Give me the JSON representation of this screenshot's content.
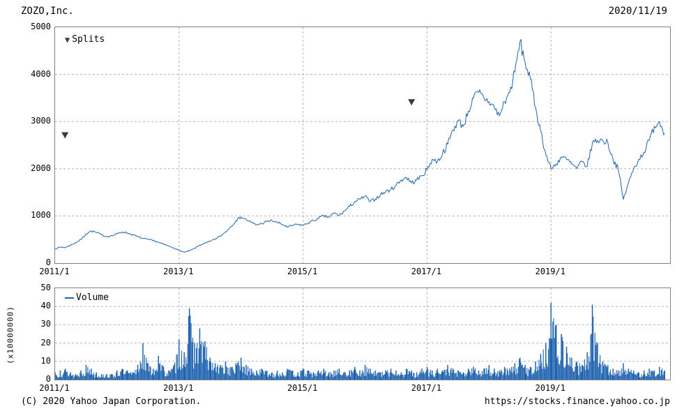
{
  "header": {
    "title": "ZOZO,Inc.",
    "date": "2020/11/19"
  },
  "footer": {
    "copyright": "(C) 2020 Yahoo Japan Corporation.",
    "url": "https://stocks.finance.yahoo.co.jp"
  },
  "colors": {
    "series_blue": "#1f63b0",
    "marker_dark": "#3a3a3a",
    "grid": "#b4b4b4",
    "border": "#808080"
  },
  "chart_data": [
    {
      "type": "line",
      "name": "ZOZO,Inc. stock price",
      "legend_label": "Splits",
      "color": "#1f63b0",
      "marker_color": "#3a3a3a",
      "x_start_year": 2011,
      "x_step_months": 1,
      "xlim": [
        2011.0,
        2020.92
      ],
      "ylim": [
        0,
        5000
      ],
      "y_ticks": [
        0,
        1000,
        2000,
        3000,
        4000,
        5000
      ],
      "x_ticks": [
        {
          "label": "2011/1",
          "year": 2011
        },
        {
          "label": "2013/1",
          "year": 2013
        },
        {
          "label": "2015/1",
          "year": 2015
        },
        {
          "label": "2017/1",
          "year": 2017
        },
        {
          "label": "2019/1",
          "year": 2019
        }
      ],
      "values": [
        300,
        340,
        330,
        380,
        430,
        500,
        620,
        680,
        650,
        600,
        560,
        580,
        620,
        660,
        640,
        600,
        560,
        520,
        500,
        480,
        440,
        400,
        360,
        320,
        270,
        230,
        260,
        310,
        380,
        420,
        460,
        510,
        570,
        660,
        770,
        900,
        980,
        920,
        860,
        810,
        840,
        880,
        900,
        860,
        820,
        760,
        800,
        820,
        800,
        850,
        900,
        950,
        1000,
        970,
        1060,
        1010,
        1100,
        1200,
        1300,
        1350,
        1420,
        1300,
        1360,
        1450,
        1510,
        1560,
        1650,
        1760,
        1820,
        1700,
        1760,
        1850,
        1980,
        2200,
        2150,
        2320,
        2520,
        2820,
        3020,
        2900,
        3220,
        3500,
        3620,
        3500,
        3420,
        3300,
        3120,
        3420,
        3620,
        4050,
        4700,
        4250,
        3900,
        3300,
        2800,
        2300,
        2000,
        2100,
        2250,
        2200,
        2100,
        2000,
        2150,
        2050,
        2550,
        2600,
        2600,
        2550,
        2200,
        2000,
        1350,
        1700,
        2000,
        2200,
        2350,
        2600,
        2900,
        3000,
        2750
      ],
      "split_markers": [
        {
          "x": 2011.16,
          "y": 2700
        },
        {
          "x": 2016.75,
          "y": 3400
        }
      ]
    },
    {
      "type": "bar",
      "name": "Volume",
      "legend_label": "Volume",
      "unit_label": "(x10000000)",
      "color": "#1f63b0",
      "x_start_year": 2011,
      "x_step_months": 1,
      "xlim": [
        2011.0,
        2020.92
      ],
      "ylim": [
        0,
        50
      ],
      "y_ticks": [
        0,
        10,
        20,
        30,
        40,
        50
      ],
      "x_ticks": [
        {
          "label": "2011/1",
          "year": 2011
        },
        {
          "label": "2013/1",
          "year": 2013
        },
        {
          "label": "2015/1",
          "year": 2015
        },
        {
          "label": "2017/1",
          "year": 2017
        },
        {
          "label": "2019/1",
          "year": 2019
        }
      ],
      "values": [
        4,
        5,
        6,
        4,
        3,
        5,
        8,
        6,
        4,
        3,
        3,
        3,
        5,
        6,
        5,
        4,
        8,
        20,
        9,
        6,
        13,
        7,
        5,
        8,
        22,
        15,
        39,
        20,
        28,
        21,
        12,
        9,
        8,
        10,
        7,
        9,
        12,
        8,
        6,
        5,
        6,
        5,
        4,
        5,
        4,
        6,
        5,
        4,
        6,
        5,
        4,
        5,
        6,
        4,
        5,
        6,
        4,
        5,
        7,
        5,
        8,
        6,
        5,
        4,
        5,
        6,
        5,
        4,
        6,
        5,
        4,
        6,
        7,
        5,
        6,
        5,
        8,
        6,
        5,
        4,
        6,
        7,
        5,
        6,
        8,
        6,
        5,
        7,
        6,
        9,
        12,
        8,
        7,
        10,
        14,
        20,
        42,
        30,
        25,
        18,
        12,
        10,
        8,
        15,
        41,
        20,
        10,
        8,
        6,
        5,
        9,
        6,
        5,
        4,
        5,
        6,
        5,
        7,
        5
      ]
    }
  ]
}
